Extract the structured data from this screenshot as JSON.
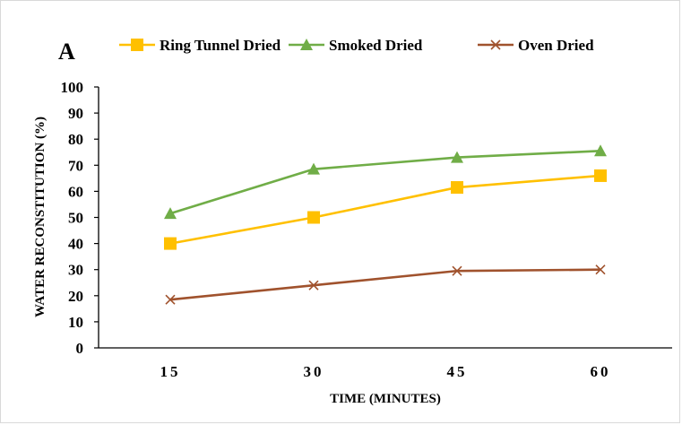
{
  "chart_data": {
    "type": "line",
    "panel_label": "A",
    "categories": [
      "15",
      "30",
      "45",
      "60"
    ],
    "series": [
      {
        "name": "Ring Tunnel Dried",
        "values": [
          40,
          50,
          61.5,
          66
        ],
        "color": "#FFC000",
        "marker": "square"
      },
      {
        "name": "Smoked Dried",
        "values": [
          51.5,
          68.5,
          73,
          75.5
        ],
        "color": "#70AD47",
        "marker": "triangle"
      },
      {
        "name": "Oven Dried",
        "values": [
          18.5,
          24,
          29.5,
          30
        ],
        "color": "#A0522D",
        "marker": "x"
      }
    ],
    "xlabel": "TIME (MINUTES)",
    "ylabel": "WATER RECONSTITUTION (%)",
    "ylim": [
      0,
      100
    ],
    "yticks": [
      "0",
      "10",
      "20",
      "30",
      "40",
      "50",
      "60",
      "70",
      "80",
      "90",
      "100"
    ],
    "grid": false,
    "legend_position": "top"
  }
}
